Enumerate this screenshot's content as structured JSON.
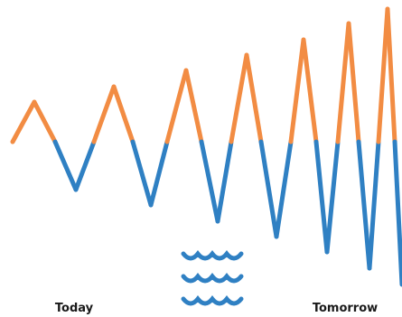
{
  "colors": {
    "above": "#F28C43",
    "below": "#2F80C3",
    "waves": "#2F80C3",
    "label": "#1A1A1A"
  },
  "icon": "water-waves-icon",
  "labels": {
    "left": "Today",
    "right": "Tomorrow"
  }
}
